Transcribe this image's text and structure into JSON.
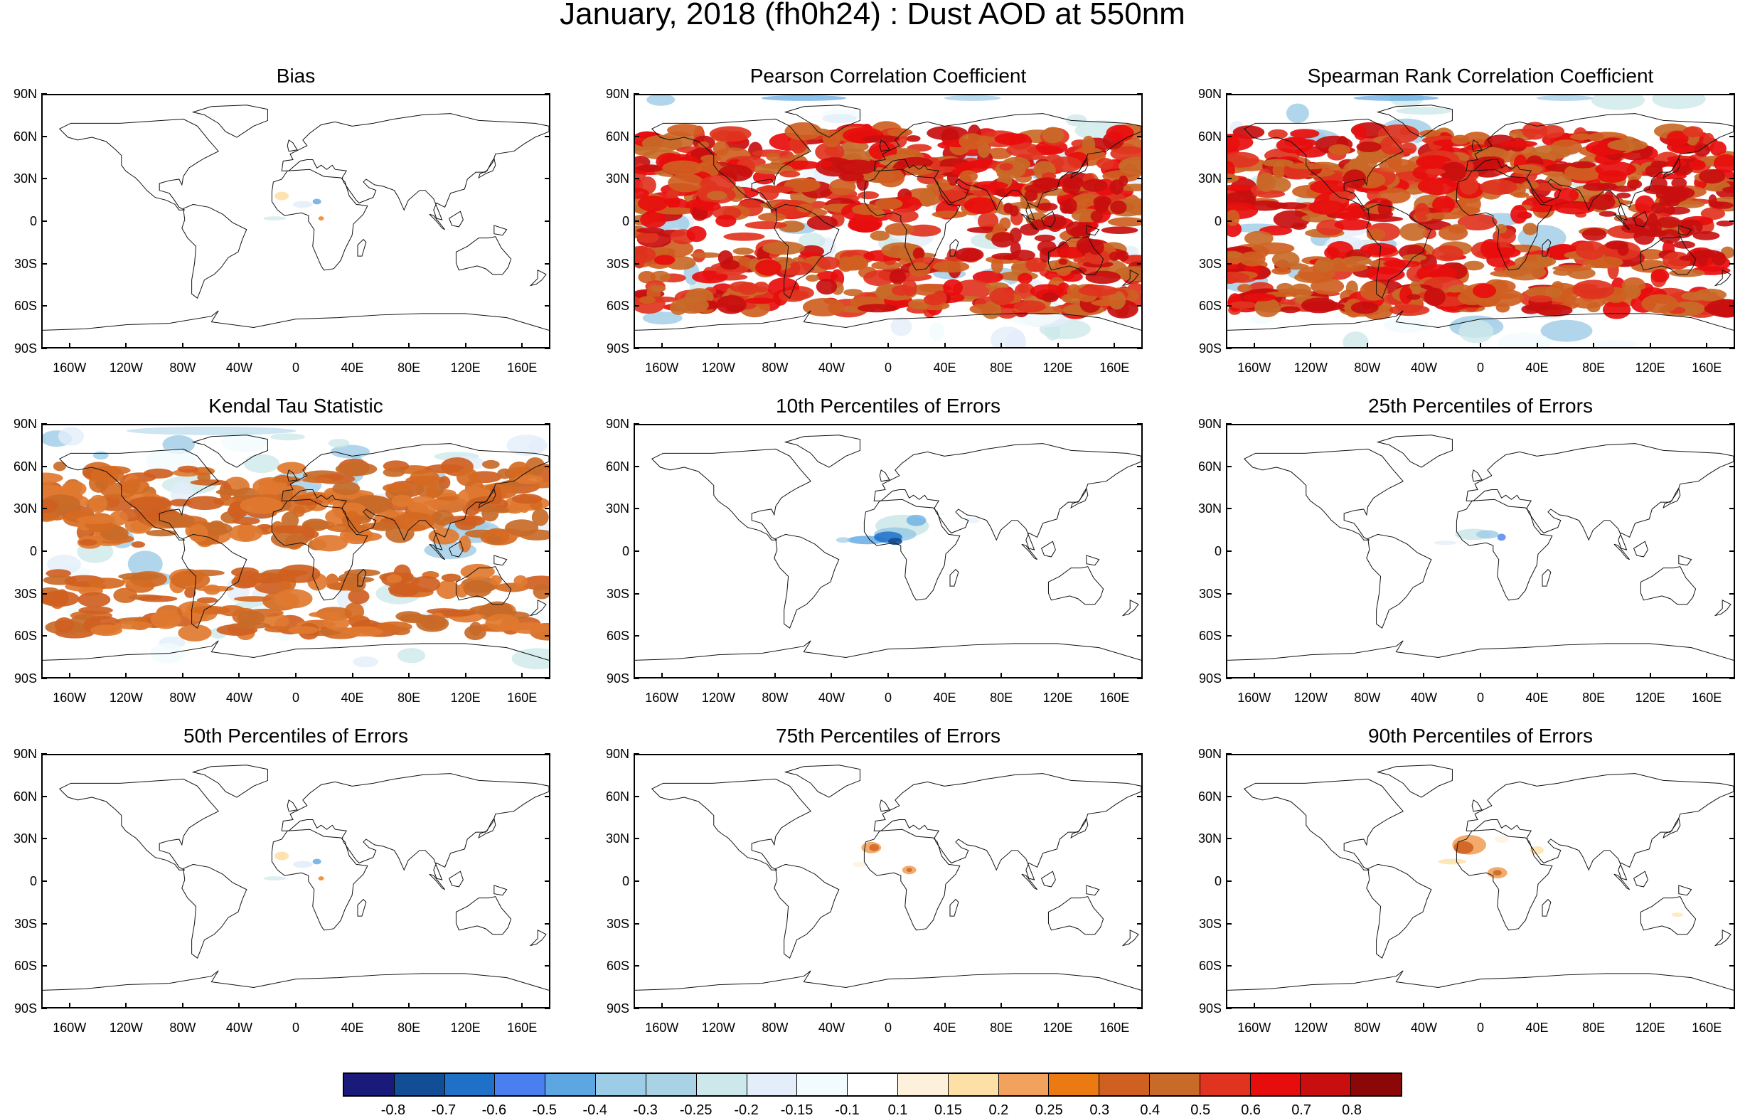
{
  "main_title": "January, 2018 (fh0h24) : Dust AOD at 550nm",
  "lat_labels": [
    "90N",
    "60N",
    "30N",
    "0",
    "30S",
    "60S",
    "90S"
  ],
  "lon_labels": [
    "160W",
    "120W",
    "80W",
    "40W",
    "0",
    "40E",
    "80E",
    "120E",
    "160E"
  ],
  "panels": [
    {
      "title": "Bias",
      "style": "sparse-bias"
    },
    {
      "title": "Pearson Correlation Coefficient",
      "style": "dense-red"
    },
    {
      "title": "Spearman Rank Correlation Coefficient",
      "style": "dense-red"
    },
    {
      "title": "Kendal Tau Statistic",
      "style": "dense-orange"
    },
    {
      "title": "10th Percentiles of Errors",
      "style": "blue-africa"
    },
    {
      "title": "25th Percentiles of Errors",
      "style": "light-blue-africa"
    },
    {
      "title": "50th Percentiles of Errors",
      "style": "sparse-bias"
    },
    {
      "title": "75th Percentiles of Errors",
      "style": "orange-africa"
    },
    {
      "title": "90th Percentiles of Errors",
      "style": "strong-orange-africa"
    }
  ],
  "colorbar": {
    "labels": [
      "-0.8",
      "-0.7",
      "-0.6",
      "-0.5",
      "-0.4",
      "-0.3",
      "-0.25",
      "-0.2",
      "-0.15",
      "-0.1",
      "0.1",
      "0.15",
      "0.2",
      "0.25",
      "0.3",
      "0.4",
      "0.5",
      "0.6",
      "0.7",
      "0.8"
    ],
    "colors": [
      "#1a1a7a",
      "#124e96",
      "#1f71c8",
      "#4a7ff0",
      "#5ca6e2",
      "#9dcce6",
      "#a9d3e4",
      "#cde8ea",
      "#e4eefa",
      "#f2fbfd",
      "#ffffff",
      "#fdf1dc",
      "#fde0a6",
      "#f2a25c",
      "#ec7a12",
      "#cf6021",
      "#c86a28",
      "#e03420",
      "#e80d0d",
      "#c80e0e",
      "#8c0808"
    ]
  }
}
